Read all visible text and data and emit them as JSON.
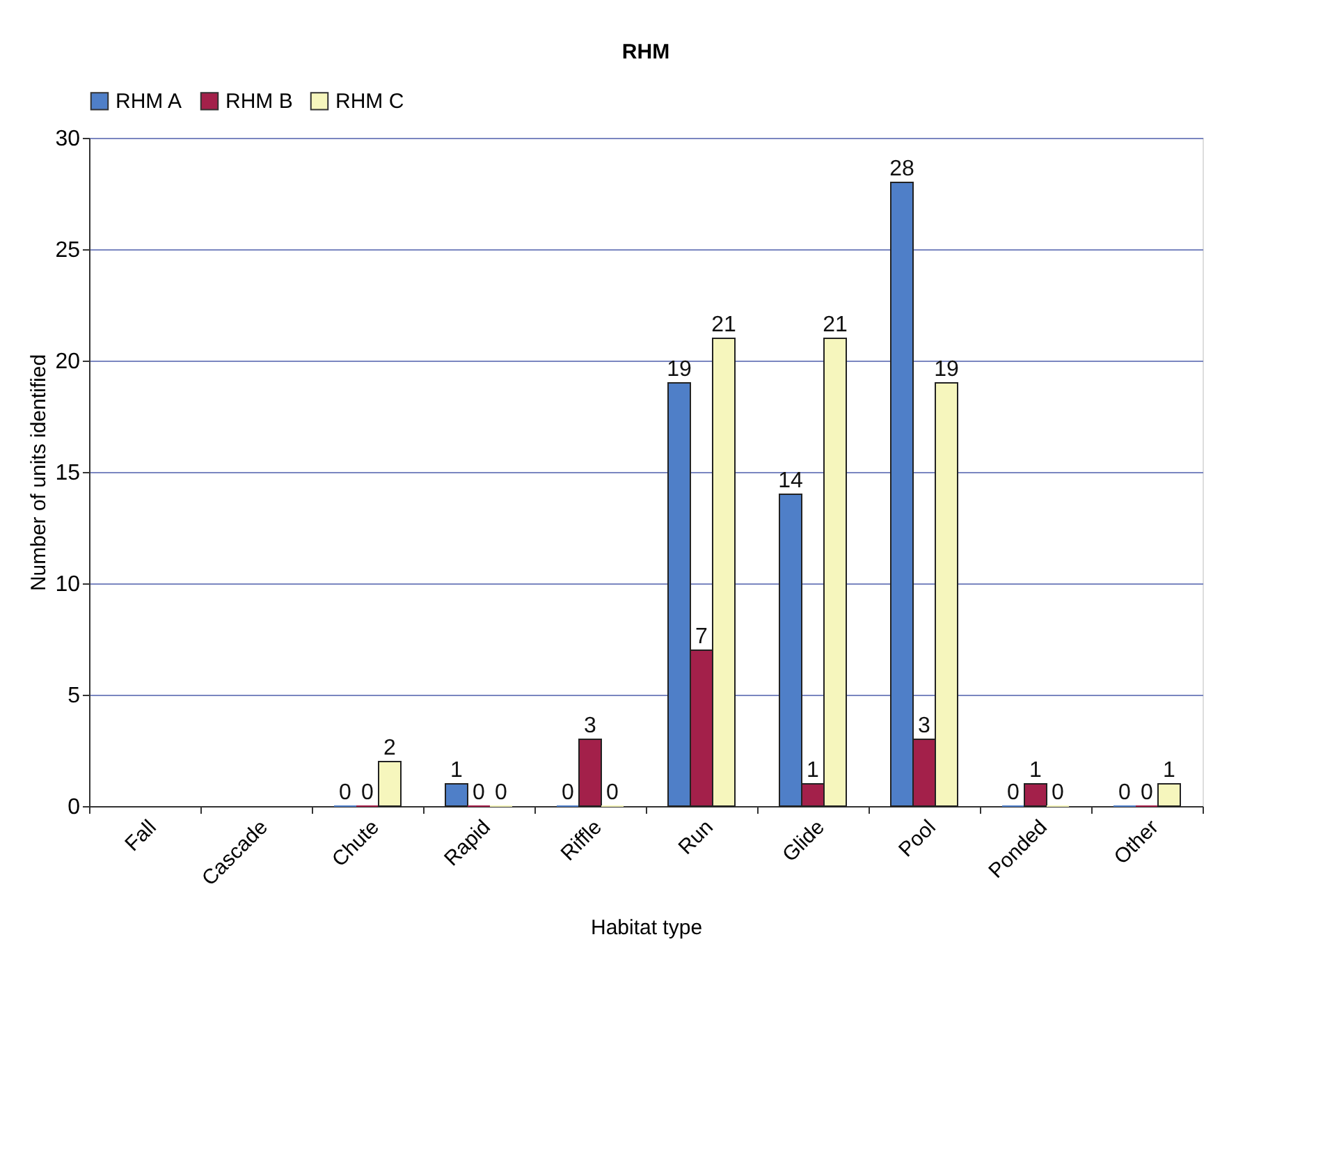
{
  "chart_data": {
    "type": "bar",
    "title": "RHM",
    "xlabel": "Habitat type",
    "ylabel": "Number of units identified",
    "categories": [
      "Fall",
      "Cascade",
      "Chute",
      "Rapid",
      "Riffle",
      "Run",
      "Glide",
      "Pool",
      "Ponded",
      "Other"
    ],
    "series": [
      {
        "name": "RHM A",
        "color": "#4f7fc8",
        "values": [
          null,
          null,
          0,
          1,
          0,
          19,
          14,
          28,
          0,
          0
        ]
      },
      {
        "name": "RHM B",
        "color": "#a3204a",
        "values": [
          null,
          null,
          0,
          0,
          3,
          7,
          1,
          3,
          1,
          0
        ]
      },
      {
        "name": "RHM C",
        "color": "#f6f6bd",
        "values": [
          null,
          null,
          2,
          0,
          0,
          21,
          21,
          19,
          0,
          1
        ]
      }
    ],
    "ylim": [
      0,
      30
    ],
    "yticks": [
      0,
      5,
      10,
      15,
      20,
      25,
      30
    ],
    "grid": "y",
    "legend": "top",
    "data_labels": true
  }
}
